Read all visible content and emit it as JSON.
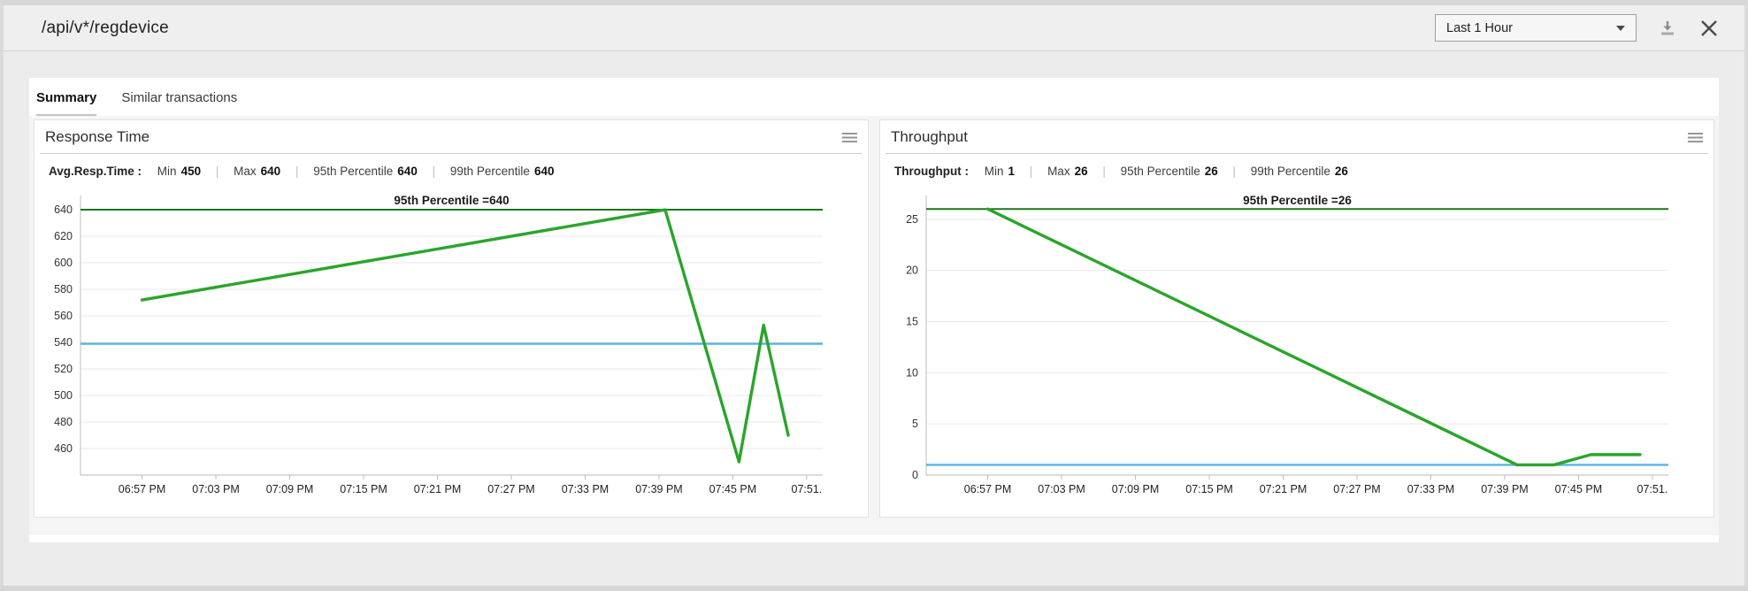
{
  "ui": {
    "separator": "|"
  },
  "header": {
    "title": "/api/v*/regdevice",
    "time_range_selected": "Last 1 Hour",
    "caret_icon": "chevron-down",
    "download_icon": "download-arrow-tray",
    "close_icon": "x-cross"
  },
  "tabs": [
    {
      "label": "Summary",
      "active": true
    },
    {
      "label": "Similar transactions",
      "active": false
    }
  ],
  "cards": [
    {
      "title": "Response Time",
      "menu_icon": "hamburger-menu",
      "stats_name": "Avg.Resp.Time :",
      "stats": [
        {
          "label": "Min",
          "value": "450"
        },
        {
          "label": "Max",
          "value": "640"
        },
        {
          "label": "95th Percentile",
          "value": "640"
        },
        {
          "label": "99th Percentile",
          "value": "640"
        }
      ]
    },
    {
      "title": "Throughput",
      "menu_icon": "hamburger-menu",
      "stats_name": "Throughput :",
      "stats": [
        {
          "label": "Min",
          "value": "1"
        },
        {
          "label": "Max",
          "value": "26"
        },
        {
          "label": "95th Percentile",
          "value": "26"
        },
        {
          "label": "99th Percentile",
          "value": "26"
        }
      ]
    }
  ],
  "colors": {
    "series_green": "#2aa52a",
    "percentile_green": "#187818",
    "average_blue": "#55b5e6",
    "grid": "#e9e9e9",
    "axis": "#c8c8c8",
    "tick_mark": "#bbbbbb",
    "tick_text": "#333333",
    "title_text": "#1a1a1a"
  },
  "chart_data": [
    {
      "type": "line",
      "name": "response-time-chart",
      "title": "95th Percentile =640",
      "xlabel": "",
      "ylabel": "",
      "grid": "horizontal-only",
      "legend": "none",
      "ylim": [
        440,
        650.7
      ],
      "yticks": [
        460,
        480,
        500,
        520,
        540,
        560,
        580,
        600,
        620,
        640
      ],
      "xlim_minutes": [
        -5,
        55.3
      ],
      "x_ticks": [
        {
          "label": "06:57 PM",
          "t": 0
        },
        {
          "label": "07:03 PM",
          "t": 6
        },
        {
          "label": "07:09 PM",
          "t": 12
        },
        {
          "label": "07:15 PM",
          "t": 18
        },
        {
          "label": "07:21 PM",
          "t": 24
        },
        {
          "label": "07:27 PM",
          "t": 30
        },
        {
          "label": "07:33 PM",
          "t": 36
        },
        {
          "label": "07:39 PM",
          "t": 42
        },
        {
          "label": "07:45 PM",
          "t": 48
        },
        {
          "label": "07:51.",
          "t": 54
        }
      ],
      "series": [
        {
          "name": "avg-response-time",
          "color": "series_green",
          "points": [
            [
              0,
              572
            ],
            [
              42.5,
              640
            ],
            [
              48.5,
              450
            ],
            [
              50.5,
              553
            ],
            [
              52.5,
              470
            ]
          ]
        }
      ],
      "reference_lines": [
        {
          "name": "95th-percentile",
          "value": 640,
          "color": "percentile_green"
        },
        {
          "name": "average",
          "value": 539,
          "color": "average_blue"
        }
      ]
    },
    {
      "type": "line",
      "name": "throughput-chart",
      "title": "95th Percentile =26",
      "xlabel": "",
      "ylabel": "",
      "grid": "horizontal-only",
      "legend": "none",
      "ylim": [
        0,
        27.32
      ],
      "yticks": [
        0,
        5,
        10,
        15,
        20,
        25
      ],
      "xlim_minutes": [
        -5,
        55.3
      ],
      "x_ticks": [
        {
          "label": "06:57 PM",
          "t": 0
        },
        {
          "label": "07:03 PM",
          "t": 6
        },
        {
          "label": "07:09 PM",
          "t": 12
        },
        {
          "label": "07:15 PM",
          "t": 18
        },
        {
          "label": "07:21 PM",
          "t": 24
        },
        {
          "label": "07:27 PM",
          "t": 30
        },
        {
          "label": "07:33 PM",
          "t": 36
        },
        {
          "label": "07:39 PM",
          "t": 42
        },
        {
          "label": "07:45 PM",
          "t": 48
        },
        {
          "label": "07:51.",
          "t": 54
        }
      ],
      "series": [
        {
          "name": "throughput",
          "color": "series_green",
          "points": [
            [
              0,
              26
            ],
            [
              43,
              1
            ],
            [
              46,
              1
            ],
            [
              49,
              2
            ],
            [
              53,
              2
            ]
          ]
        }
      ],
      "reference_lines": [
        {
          "name": "95th-percentile",
          "value": 26,
          "color": "percentile_green"
        },
        {
          "name": "average",
          "value": 1,
          "color": "average_blue"
        }
      ]
    }
  ]
}
